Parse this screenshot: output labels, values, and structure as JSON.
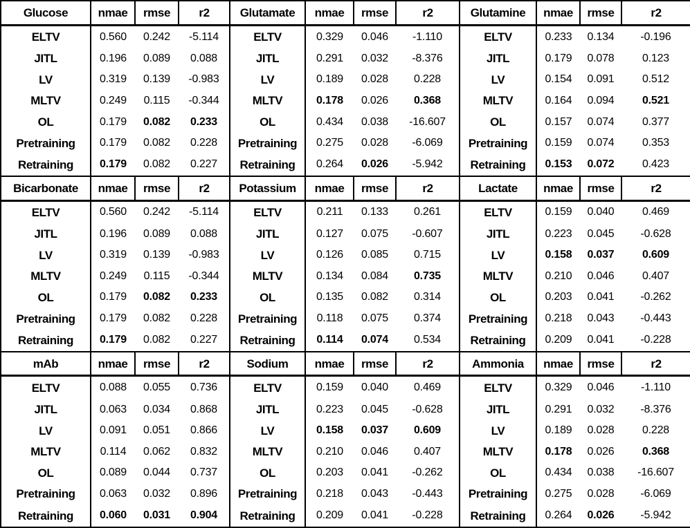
{
  "chart_data": {
    "type": "table",
    "grid_layout": "3x3 grid of sub-tables, each: analyte header + 7 method rows x 3 metrics",
    "column_headers": [
      "nmae",
      "rmse",
      "r2"
    ],
    "colors": {
      "text": "#000000",
      "border": "#000000",
      "background": "#ffffff"
    },
    "tables": [
      {
        "analyte": "Glucose",
        "rows": [
          {
            "method": "ELTV",
            "values": [
              "0.560",
              "0.242",
              "-5.114"
            ],
            "bold": [
              false,
              false,
              false
            ]
          },
          {
            "method": "JITL",
            "values": [
              "0.196",
              "0.089",
              "0.088"
            ],
            "bold": [
              false,
              false,
              false
            ]
          },
          {
            "method": "LV",
            "values": [
              "0.319",
              "0.139",
              "-0.983"
            ],
            "bold": [
              false,
              false,
              false
            ]
          },
          {
            "method": "MLTV",
            "values": [
              "0.249",
              "0.115",
              "-0.344"
            ],
            "bold": [
              false,
              false,
              false
            ]
          },
          {
            "method": "OL",
            "values": [
              "0.179",
              "0.082",
              "0.233"
            ],
            "bold": [
              false,
              true,
              true
            ]
          },
          {
            "method": "Pretraining",
            "values": [
              "0.179",
              "0.082",
              "0.228"
            ],
            "bold": [
              false,
              false,
              false
            ]
          },
          {
            "method": "Retraining",
            "values": [
              "0.179",
              "0.082",
              "0.227"
            ],
            "bold": [
              true,
              false,
              false
            ]
          }
        ]
      },
      {
        "analyte": "Glutamate",
        "rows": [
          {
            "method": "ELTV",
            "values": [
              "0.329",
              "0.046",
              "-1.110"
            ],
            "bold": [
              false,
              false,
              false
            ]
          },
          {
            "method": "JITL",
            "values": [
              "0.291",
              "0.032",
              "-8.376"
            ],
            "bold": [
              false,
              false,
              false
            ]
          },
          {
            "method": "LV",
            "values": [
              "0.189",
              "0.028",
              "0.228"
            ],
            "bold": [
              false,
              false,
              false
            ]
          },
          {
            "method": "MLTV",
            "values": [
              "0.178",
              "0.026",
              "0.368"
            ],
            "bold": [
              true,
              false,
              true
            ]
          },
          {
            "method": "OL",
            "values": [
              "0.434",
              "0.038",
              "-16.607"
            ],
            "bold": [
              false,
              false,
              false
            ]
          },
          {
            "method": "Pretraining",
            "values": [
              "0.275",
              "0.028",
              "-6.069"
            ],
            "bold": [
              false,
              false,
              false
            ]
          },
          {
            "method": "Retraining",
            "values": [
              "0.264",
              "0.026",
              "-5.942"
            ],
            "bold": [
              false,
              true,
              false
            ]
          }
        ]
      },
      {
        "analyte": "Glutamine",
        "rows": [
          {
            "method": "ELTV",
            "values": [
              "0.233",
              "0.134",
              "-0.196"
            ],
            "bold": [
              false,
              false,
              false
            ]
          },
          {
            "method": "JITL",
            "values": [
              "0.179",
              "0.078",
              "0.123"
            ],
            "bold": [
              false,
              false,
              false
            ]
          },
          {
            "method": "LV",
            "values": [
              "0.154",
              "0.091",
              "0.512"
            ],
            "bold": [
              false,
              false,
              false
            ]
          },
          {
            "method": "MLTV",
            "values": [
              "0.164",
              "0.094",
              "0.521"
            ],
            "bold": [
              false,
              false,
              true
            ]
          },
          {
            "method": "OL",
            "values": [
              "0.157",
              "0.074",
              "0.377"
            ],
            "bold": [
              false,
              false,
              false
            ]
          },
          {
            "method": "Pretraining",
            "values": [
              "0.159",
              "0.074",
              "0.353"
            ],
            "bold": [
              false,
              false,
              false
            ]
          },
          {
            "method": "Retraining",
            "values": [
              "0.153",
              "0.072",
              "0.423"
            ],
            "bold": [
              true,
              true,
              false
            ]
          }
        ]
      },
      {
        "analyte": "Bicarbonate",
        "rows": [
          {
            "method": "ELTV",
            "values": [
              "0.560",
              "0.242",
              "-5.114"
            ],
            "bold": [
              false,
              false,
              false
            ]
          },
          {
            "method": "JITL",
            "values": [
              "0.196",
              "0.089",
              "0.088"
            ],
            "bold": [
              false,
              false,
              false
            ]
          },
          {
            "method": "LV",
            "values": [
              "0.319",
              "0.139",
              "-0.983"
            ],
            "bold": [
              false,
              false,
              false
            ]
          },
          {
            "method": "MLTV",
            "values": [
              "0.249",
              "0.115",
              "-0.344"
            ],
            "bold": [
              false,
              false,
              false
            ]
          },
          {
            "method": "OL",
            "values": [
              "0.179",
              "0.082",
              "0.233"
            ],
            "bold": [
              false,
              true,
              true
            ]
          },
          {
            "method": "Pretraining",
            "values": [
              "0.179",
              "0.082",
              "0.228"
            ],
            "bold": [
              false,
              false,
              false
            ]
          },
          {
            "method": "Retraining",
            "values": [
              "0.179",
              "0.082",
              "0.227"
            ],
            "bold": [
              true,
              false,
              false
            ]
          }
        ]
      },
      {
        "analyte": "Potassium",
        "rows": [
          {
            "method": "ELTV",
            "values": [
              "0.211",
              "0.133",
              "0.261"
            ],
            "bold": [
              false,
              false,
              false
            ]
          },
          {
            "method": "JITL",
            "values": [
              "0.127",
              "0.075",
              "-0.607"
            ],
            "bold": [
              false,
              false,
              false
            ]
          },
          {
            "method": "LV",
            "values": [
              "0.126",
              "0.085",
              "0.715"
            ],
            "bold": [
              false,
              false,
              false
            ]
          },
          {
            "method": "MLTV",
            "values": [
              "0.134",
              "0.084",
              "0.735"
            ],
            "bold": [
              false,
              false,
              true
            ]
          },
          {
            "method": "OL",
            "values": [
              "0.135",
              "0.082",
              "0.314"
            ],
            "bold": [
              false,
              false,
              false
            ]
          },
          {
            "method": "Pretraining",
            "values": [
              "0.118",
              "0.075",
              "0.374"
            ],
            "bold": [
              false,
              false,
              false
            ]
          },
          {
            "method": "Retraining",
            "values": [
              "0.114",
              "0.074",
              "0.534"
            ],
            "bold": [
              true,
              true,
              false
            ]
          }
        ]
      },
      {
        "analyte": "Lactate",
        "rows": [
          {
            "method": "ELTV",
            "values": [
              "0.159",
              "0.040",
              "0.469"
            ],
            "bold": [
              false,
              false,
              false
            ]
          },
          {
            "method": "JITL",
            "values": [
              "0.223",
              "0.045",
              "-0.628"
            ],
            "bold": [
              false,
              false,
              false
            ]
          },
          {
            "method": "LV",
            "values": [
              "0.158",
              "0.037",
              "0.609"
            ],
            "bold": [
              true,
              true,
              true
            ]
          },
          {
            "method": "MLTV",
            "values": [
              "0.210",
              "0.046",
              "0.407"
            ],
            "bold": [
              false,
              false,
              false
            ]
          },
          {
            "method": "OL",
            "values": [
              "0.203",
              "0.041",
              "-0.262"
            ],
            "bold": [
              false,
              false,
              false
            ]
          },
          {
            "method": "Pretraining",
            "values": [
              "0.218",
              "0.043",
              "-0.443"
            ],
            "bold": [
              false,
              false,
              false
            ]
          },
          {
            "method": "Retraining",
            "values": [
              "0.209",
              "0.041",
              "-0.228"
            ],
            "bold": [
              false,
              false,
              false
            ]
          }
        ]
      },
      {
        "analyte": "mAb",
        "rows": [
          {
            "method": "ELTV",
            "values": [
              "0.088",
              "0.055",
              "0.736"
            ],
            "bold": [
              false,
              false,
              false
            ]
          },
          {
            "method": "JITL",
            "values": [
              "0.063",
              "0.034",
              "0.868"
            ],
            "bold": [
              false,
              false,
              false
            ]
          },
          {
            "method": "LV",
            "values": [
              "0.091",
              "0.051",
              "0.866"
            ],
            "bold": [
              false,
              false,
              false
            ]
          },
          {
            "method": "MLTV",
            "values": [
              "0.114",
              "0.062",
              "0.832"
            ],
            "bold": [
              false,
              false,
              false
            ]
          },
          {
            "method": "OL",
            "values": [
              "0.089",
              "0.044",
              "0.737"
            ],
            "bold": [
              false,
              false,
              false
            ]
          },
          {
            "method": "Pretraining",
            "values": [
              "0.063",
              "0.032",
              "0.896"
            ],
            "bold": [
              false,
              false,
              false
            ]
          },
          {
            "method": "Retraining",
            "values": [
              "0.060",
              "0.031",
              "0.904"
            ],
            "bold": [
              true,
              true,
              true
            ]
          }
        ]
      },
      {
        "analyte": "Sodium",
        "rows": [
          {
            "method": "ELTV",
            "values": [
              "0.159",
              "0.040",
              "0.469"
            ],
            "bold": [
              false,
              false,
              false
            ]
          },
          {
            "method": "JITL",
            "values": [
              "0.223",
              "0.045",
              "-0.628"
            ],
            "bold": [
              false,
              false,
              false
            ]
          },
          {
            "method": "LV",
            "values": [
              "0.158",
              "0.037",
              "0.609"
            ],
            "bold": [
              true,
              true,
              true
            ]
          },
          {
            "method": "MLTV",
            "values": [
              "0.210",
              "0.046",
              "0.407"
            ],
            "bold": [
              false,
              false,
              false
            ]
          },
          {
            "method": "OL",
            "values": [
              "0.203",
              "0.041",
              "-0.262"
            ],
            "bold": [
              false,
              false,
              false
            ]
          },
          {
            "method": "Pretraining",
            "values": [
              "0.218",
              "0.043",
              "-0.443"
            ],
            "bold": [
              false,
              false,
              false
            ]
          },
          {
            "method": "Retraining",
            "values": [
              "0.209",
              "0.041",
              "-0.228"
            ],
            "bold": [
              false,
              false,
              false
            ]
          }
        ]
      },
      {
        "analyte": "Ammonia",
        "rows": [
          {
            "method": "ELTV",
            "values": [
              "0.329",
              "0.046",
              "-1.110"
            ],
            "bold": [
              false,
              false,
              false
            ]
          },
          {
            "method": "JITL",
            "values": [
              "0.291",
              "0.032",
              "-8.376"
            ],
            "bold": [
              false,
              false,
              false
            ]
          },
          {
            "method": "LV",
            "values": [
              "0.189",
              "0.028",
              "0.228"
            ],
            "bold": [
              false,
              false,
              false
            ]
          },
          {
            "method": "MLTV",
            "values": [
              "0.178",
              "0.026",
              "0.368"
            ],
            "bold": [
              true,
              false,
              true
            ]
          },
          {
            "method": "OL",
            "values": [
              "0.434",
              "0.038",
              "-16.607"
            ],
            "bold": [
              false,
              false,
              false
            ]
          },
          {
            "method": "Pretraining",
            "values": [
              "0.275",
              "0.028",
              "-6.069"
            ],
            "bold": [
              false,
              false,
              false
            ]
          },
          {
            "method": "Retraining",
            "values": [
              "0.264",
              "0.026",
              "-5.942"
            ],
            "bold": [
              false,
              true,
              false
            ]
          }
        ]
      }
    ]
  }
}
